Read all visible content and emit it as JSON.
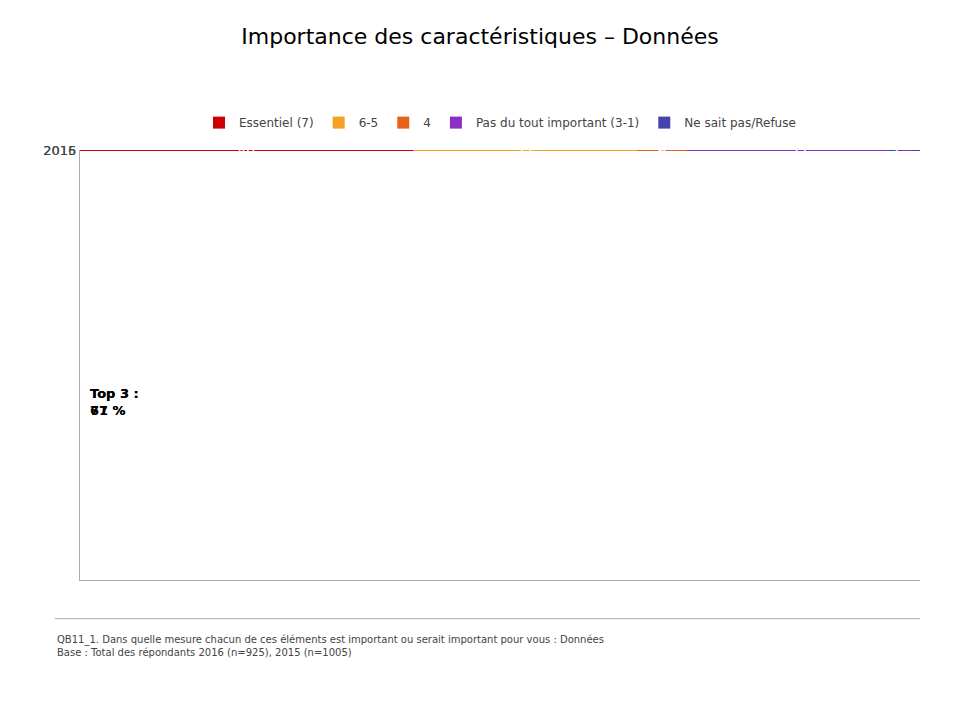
{
  "chart_data": {
    "type": "bar",
    "orientation": "horizontal",
    "stacked": true,
    "title": "Importance des caractéristiques – Données",
    "categories": [
      "2016",
      "2015"
    ],
    "series": [
      {
        "name": "Essentiel (7)",
        "color": "#cc0000",
        "values": [
          45,
          40
        ]
      },
      {
        "name": "6-5",
        "color": "#f5a020",
        "values": [
          26,
          27
        ]
      },
      {
        "name": "4",
        "color": "#e8621a",
        "values": [
          5,
          6
        ]
      },
      {
        "name": "Pas du tout important (3-1)",
        "color": "#8b2fc8",
        "values": [
          21,
          27
        ]
      },
      {
        "name": "Ne sait pas/Refuse",
        "color": "#4444aa",
        "values": [
          2,
          1
        ],
        "value_labels": [
          "2",
          null
        ]
      }
    ],
    "data_labels": true,
    "annotations": [
      {
        "category": "2016",
        "text": "Top 3 :\n71 %"
      },
      {
        "category": "2015",
        "text": "Top 3 :\n67 %"
      }
    ],
    "footnote": "QB11_1. Dans quelle mesure chacun de ces éléments est important ou serait important pour vous : Données\nBase : Total des répondants 2016 (n=925), 2015 (n=1005)",
    "xlim": [
      0,
      101
    ],
    "tick_labels": "y",
    "grid": false,
    "legend": "top"
  }
}
